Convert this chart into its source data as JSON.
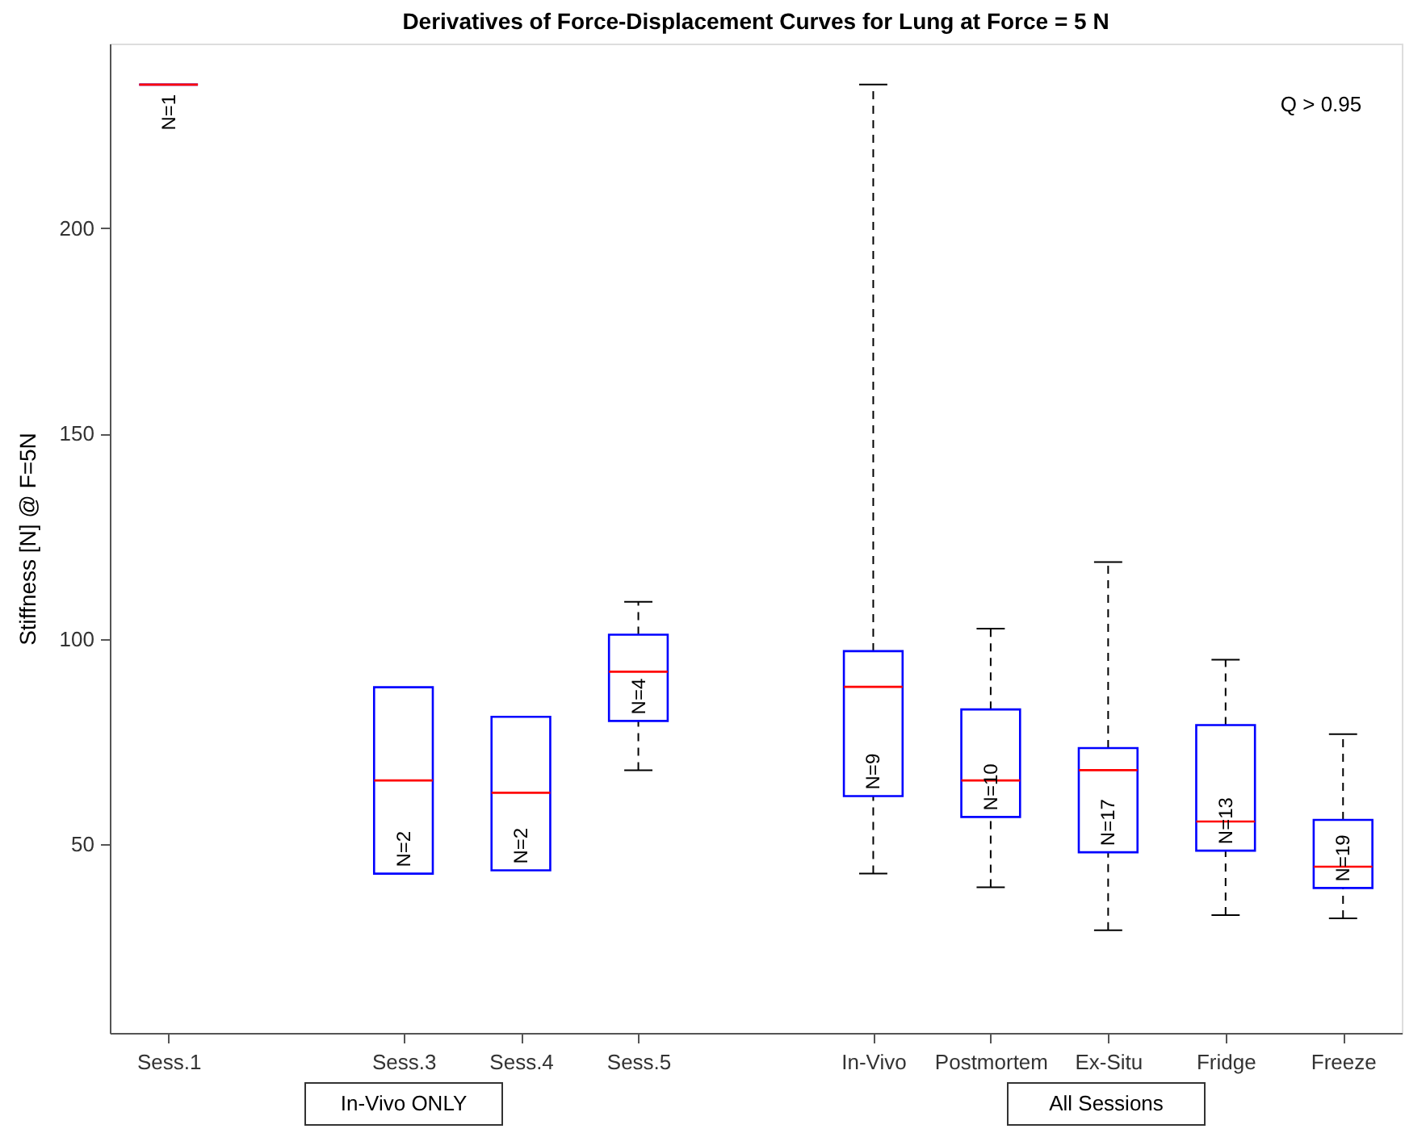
{
  "chart_data": {
    "type": "box",
    "title": "Derivatives of Force-Displacement Curves for Lung at Force = 5 N",
    "ylabel": "Stiffness [N] @ F=5N",
    "categories": [
      "Sess.1",
      null,
      "Sess.3",
      "Sess.4",
      "Sess.5",
      null,
      "In-Vivo",
      "Postmortem",
      "Ex-Situ",
      "Fridge",
      "Freeze"
    ],
    "boxes": [
      {
        "low": 235,
        "q1": 235,
        "median": 235,
        "q3": 235,
        "high": 235
      },
      null,
      {
        "low": 42.8,
        "q1": 42.8,
        "median": 65.5,
        "q3": 88.2,
        "high": 88.2
      },
      {
        "low": 43.6,
        "q1": 43.6,
        "median": 62.5,
        "q3": 81,
        "high": 81
      },
      {
        "low": 68,
        "q1": 80,
        "median": 92,
        "q3": 101,
        "high": 109
      },
      null,
      {
        "low": 42.8,
        "q1": 61.7,
        "median": 88.3,
        "q3": 97,
        "high": 235
      },
      {
        "low": 39.5,
        "q1": 56.6,
        "median": 65.5,
        "q3": 82.8,
        "high": 102.5
      },
      {
        "low": 29,
        "q1": 48,
        "median": 68,
        "q3": 73.4,
        "high": 118.7
      },
      {
        "low": 32.7,
        "q1": 48.4,
        "median": 55.5,
        "q3": 79,
        "high": 94.9
      },
      {
        "low": 31.9,
        "q1": 39.3,
        "median": 44.5,
        "q3": 55.9,
        "high": 76.8
      }
    ],
    "color": "#0000ff",
    "ylim": [
      4,
      245
    ],
    "yticks": [
      50,
      100,
      150,
      200
    ],
    "grid": false,
    "annotations": [
      "N=1",
      "N=2",
      "N=2",
      "N=4",
      "N=9",
      "N=10",
      "N=17",
      "N=13",
      "N=19",
      "Q > 0.95",
      "In-Vivo ONLY",
      "All Sessions"
    ]
  }
}
